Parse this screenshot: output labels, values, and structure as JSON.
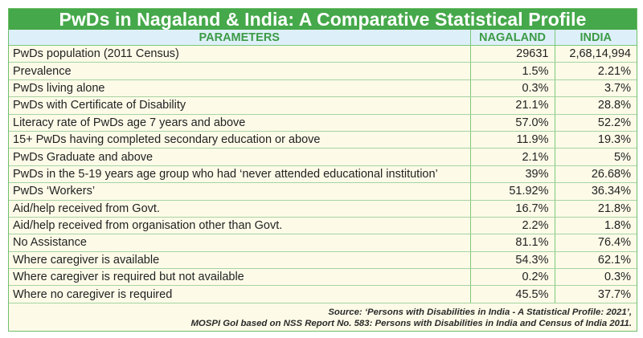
{
  "title": "PwDs in Nagaland & India: A Comparative Statistical Profile",
  "table": {
    "headers": [
      "PARAMETERS",
      "NAGALAND",
      "INDIA"
    ],
    "rows": [
      {
        "parameter": "PwDs population (2011 Census)",
        "nagaland": "29631",
        "india": "2,68,14,994"
      },
      {
        "parameter": "Prevalence",
        "nagaland": "1.5%",
        "india": "2.21%"
      },
      {
        "parameter": "PwDs living alone",
        "nagaland": "0.3%",
        "india": "3.7%"
      },
      {
        "parameter": "PwDs with Certificate of Disability",
        "nagaland": "21.1%",
        "india": "28.8%"
      },
      {
        "parameter": "Literacy rate of PwDs age 7 years and above",
        "nagaland": "57.0%",
        "india": "52.2%"
      },
      {
        "parameter": "15+ PwDs having completed secondary education or above",
        "nagaland": "11.9%",
        "india": "19.3%"
      },
      {
        "parameter": "PwDs Graduate and above",
        "nagaland": "2.1%",
        "india": "5%"
      },
      {
        "parameter": "PwDs in the 5-19 years age group who had ‘never attended educational institution’",
        "nagaland": "39%",
        "india": "26.68%"
      },
      {
        "parameter": "PwDs ‘Workers’",
        "nagaland": "51.92%",
        "india": "36.34%"
      },
      {
        "parameter": "Aid/help received from Govt.",
        "nagaland": "16.7%",
        "india": "21.8%"
      },
      {
        "parameter": "Aid/help received from organisation other than Govt.",
        "nagaland": "2.2%",
        "india": "1.8%"
      },
      {
        "parameter": "No Assistance",
        "nagaland": "81.1%",
        "india": "76.4%"
      },
      {
        "parameter": "Where caregiver is available",
        "nagaland": "54.3%",
        "india": "62.1%"
      },
      {
        "parameter": "Where caregiver is required but not available",
        "nagaland": "0.2%",
        "india": "0.3%"
      },
      {
        "parameter": "Where no caregiver is required",
        "nagaland": "45.5%",
        "india": "37.7%"
      }
    ]
  },
  "source": {
    "line1": "Source: ‘Persons with Disabilities in India - A Statistical Profile: 2021’,",
    "line2": "MOSPI GoI based on NSS Report No. 583: Persons with Disabilities in India and Census of India 2011."
  },
  "colors": {
    "title_bg": "#45a84a",
    "header_bg": "#ddf0fa",
    "header_text": "#3c9a45",
    "body_bg": "#fdfbe8",
    "grid": "#7cc77a"
  }
}
